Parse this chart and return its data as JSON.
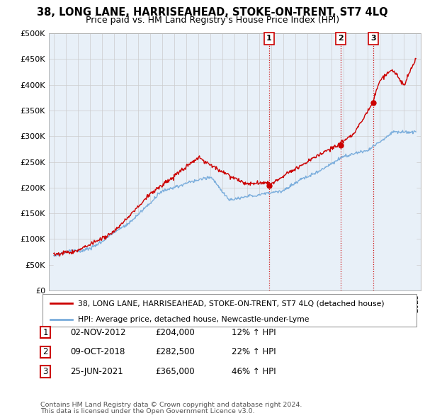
{
  "title": "38, LONG LANE, HARRISEAHEAD, STOKE-ON-TRENT, ST7 4LQ",
  "subtitle": "Price paid vs. HM Land Registry's House Price Index (HPI)",
  "ylim": [
    0,
    500000
  ],
  "yticks": [
    0,
    50000,
    100000,
    150000,
    200000,
    250000,
    300000,
    350000,
    400000,
    450000,
    500000
  ],
  "ytick_labels": [
    "£0",
    "£50K",
    "£100K",
    "£150K",
    "£200K",
    "£250K",
    "£300K",
    "£350K",
    "£400K",
    "£450K",
    "£500K"
  ],
  "sale_color": "#cc0000",
  "hpi_color": "#7aaddc",
  "hpi_bg_color": "#e8f0f8",
  "sale_label": "38, LONG LANE, HARRISEAHEAD, STOKE-ON-TRENT, ST7 4LQ (detached house)",
  "hpi_label": "HPI: Average price, detached house, Newcastle-under-Lyme",
  "transactions": [
    {
      "num": 1,
      "date": "02-NOV-2012",
      "price": 204000,
      "pct": "12%",
      "year": 2012.83
    },
    {
      "num": 2,
      "date": "09-OCT-2018",
      "price": 282500,
      "pct": "22%",
      "year": 2018.77
    },
    {
      "num": 3,
      "date": "25-JUN-2021",
      "price": 365000,
      "pct": "46%",
      "year": 2021.48
    }
  ],
  "footer1": "Contains HM Land Registry data © Crown copyright and database right 2024.",
  "footer2": "This data is licensed under the Open Government Licence v3.0.",
  "bg_color": "#ffffff",
  "grid_color": "#cccccc",
  "xlim": [
    1994.6,
    2025.4
  ]
}
